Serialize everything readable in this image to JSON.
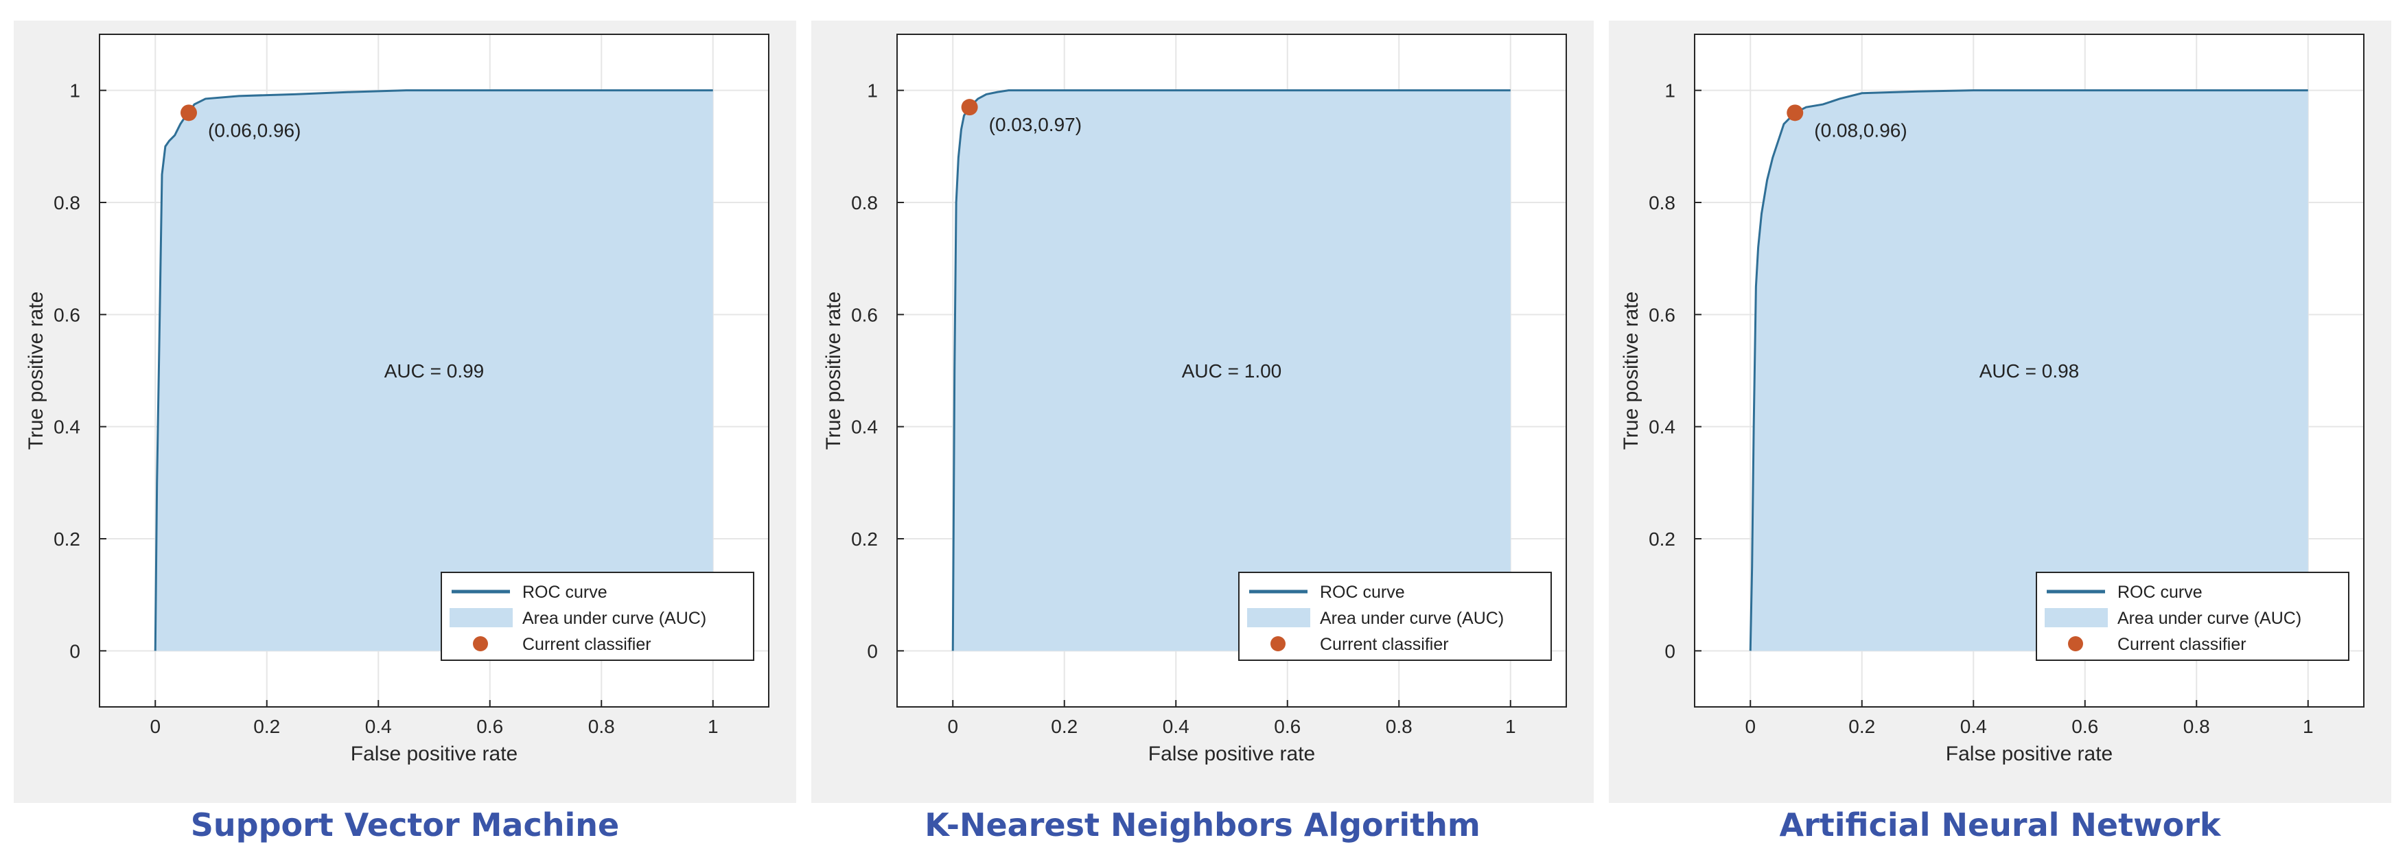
{
  "page": {
    "captions": [
      "Support Vector Machine",
      "K-Nearest Neighbors Algorithm",
      "Artificial Neural Network"
    ]
  },
  "colors": {
    "curve": "#2f6f96",
    "area": "#c7def0",
    "marker": "#c8582a",
    "figure_bg": "#f0f0f0",
    "axes_bg": "#ffffff",
    "grid": "#e6e6e6",
    "caption": "#3a55a8"
  },
  "chart_data": [
    {
      "type": "area",
      "title": "",
      "xlabel": "False positive rate",
      "ylabel": "True positive rate",
      "xlim": [
        -0.1,
        1.1
      ],
      "ylim": [
        -0.1,
        1.1
      ],
      "xticks": [
        "0",
        "0.2",
        "0.4",
        "0.6",
        "0.8",
        "1"
      ],
      "yticks": [
        "0",
        "0.2",
        "0.4",
        "0.6",
        "0.8",
        "1"
      ],
      "grid": true,
      "legend_position": "bottom-right",
      "legend": [
        "ROC curve",
        "Area under curve (AUC)",
        "Current classifier"
      ],
      "auc_label": "AUC = 0.99",
      "point_label": "(0.06,0.96)",
      "current_classifier": {
        "x": 0.06,
        "y": 0.96
      },
      "series": [
        {
          "name": "ROC curve",
          "x": [
            0,
            0.003,
            0.008,
            0.012,
            0.018,
            0.025,
            0.035,
            0.045,
            0.055,
            0.06,
            0.07,
            0.09,
            0.15,
            0.25,
            0.35,
            0.45,
            0.6,
            0.8,
            1
          ],
          "y": [
            0,
            0.3,
            0.6,
            0.85,
            0.9,
            0.91,
            0.92,
            0.94,
            0.955,
            0.96,
            0.975,
            0.985,
            0.99,
            0.993,
            0.997,
            1,
            1,
            1,
            1
          ]
        }
      ]
    },
    {
      "type": "area",
      "title": "",
      "xlabel": "False positive rate",
      "ylabel": "True positive rate",
      "xlim": [
        -0.1,
        1.1
      ],
      "ylim": [
        -0.1,
        1.1
      ],
      "xticks": [
        "0",
        "0.2",
        "0.4",
        "0.6",
        "0.8",
        "1"
      ],
      "yticks": [
        "0",
        "0.2",
        "0.4",
        "0.6",
        "0.8",
        "1"
      ],
      "grid": true,
      "legend_position": "bottom-right",
      "legend": [
        "ROC curve",
        "Area under curve (AUC)",
        "Current classifier"
      ],
      "auc_label": "AUC = 1.00",
      "point_label": "(0.03,0.97)",
      "current_classifier": {
        "x": 0.03,
        "y": 0.97
      },
      "series": [
        {
          "name": "ROC curve",
          "x": [
            0,
            0.003,
            0.006,
            0.01,
            0.015,
            0.02,
            0.03,
            0.045,
            0.06,
            0.08,
            0.1,
            0.2,
            0.4,
            0.6,
            0.8,
            1
          ],
          "y": [
            0,
            0.5,
            0.8,
            0.88,
            0.93,
            0.955,
            0.97,
            0.985,
            0.993,
            0.997,
            1,
            1,
            1,
            1,
            1,
            1
          ]
        }
      ]
    },
    {
      "type": "area",
      "title": "",
      "xlabel": "False positive rate",
      "ylabel": "True positive rate",
      "xlim": [
        -0.1,
        1.1
      ],
      "ylim": [
        -0.1,
        1.1
      ],
      "xticks": [
        "0",
        "0.2",
        "0.4",
        "0.6",
        "0.8",
        "1"
      ],
      "yticks": [
        "0",
        "0.2",
        "0.4",
        "0.6",
        "0.8",
        "1"
      ],
      "grid": true,
      "legend_position": "bottom-right",
      "legend": [
        "ROC curve",
        "Area under curve (AUC)",
        "Current classifier"
      ],
      "auc_label": "AUC = 0.98",
      "point_label": "(0.08,0.96)",
      "current_classifier": {
        "x": 0.08,
        "y": 0.96
      },
      "series": [
        {
          "name": "ROC curve",
          "x": [
            0,
            0.003,
            0.006,
            0.01,
            0.014,
            0.02,
            0.03,
            0.04,
            0.05,
            0.06,
            0.08,
            0.1,
            0.13,
            0.16,
            0.2,
            0.3,
            0.4,
            0.6,
            0.8,
            1
          ],
          "y": [
            0,
            0.15,
            0.4,
            0.65,
            0.72,
            0.78,
            0.84,
            0.88,
            0.91,
            0.94,
            0.96,
            0.97,
            0.975,
            0.985,
            0.995,
            0.998,
            1,
            1,
            1,
            1
          ]
        }
      ]
    }
  ]
}
